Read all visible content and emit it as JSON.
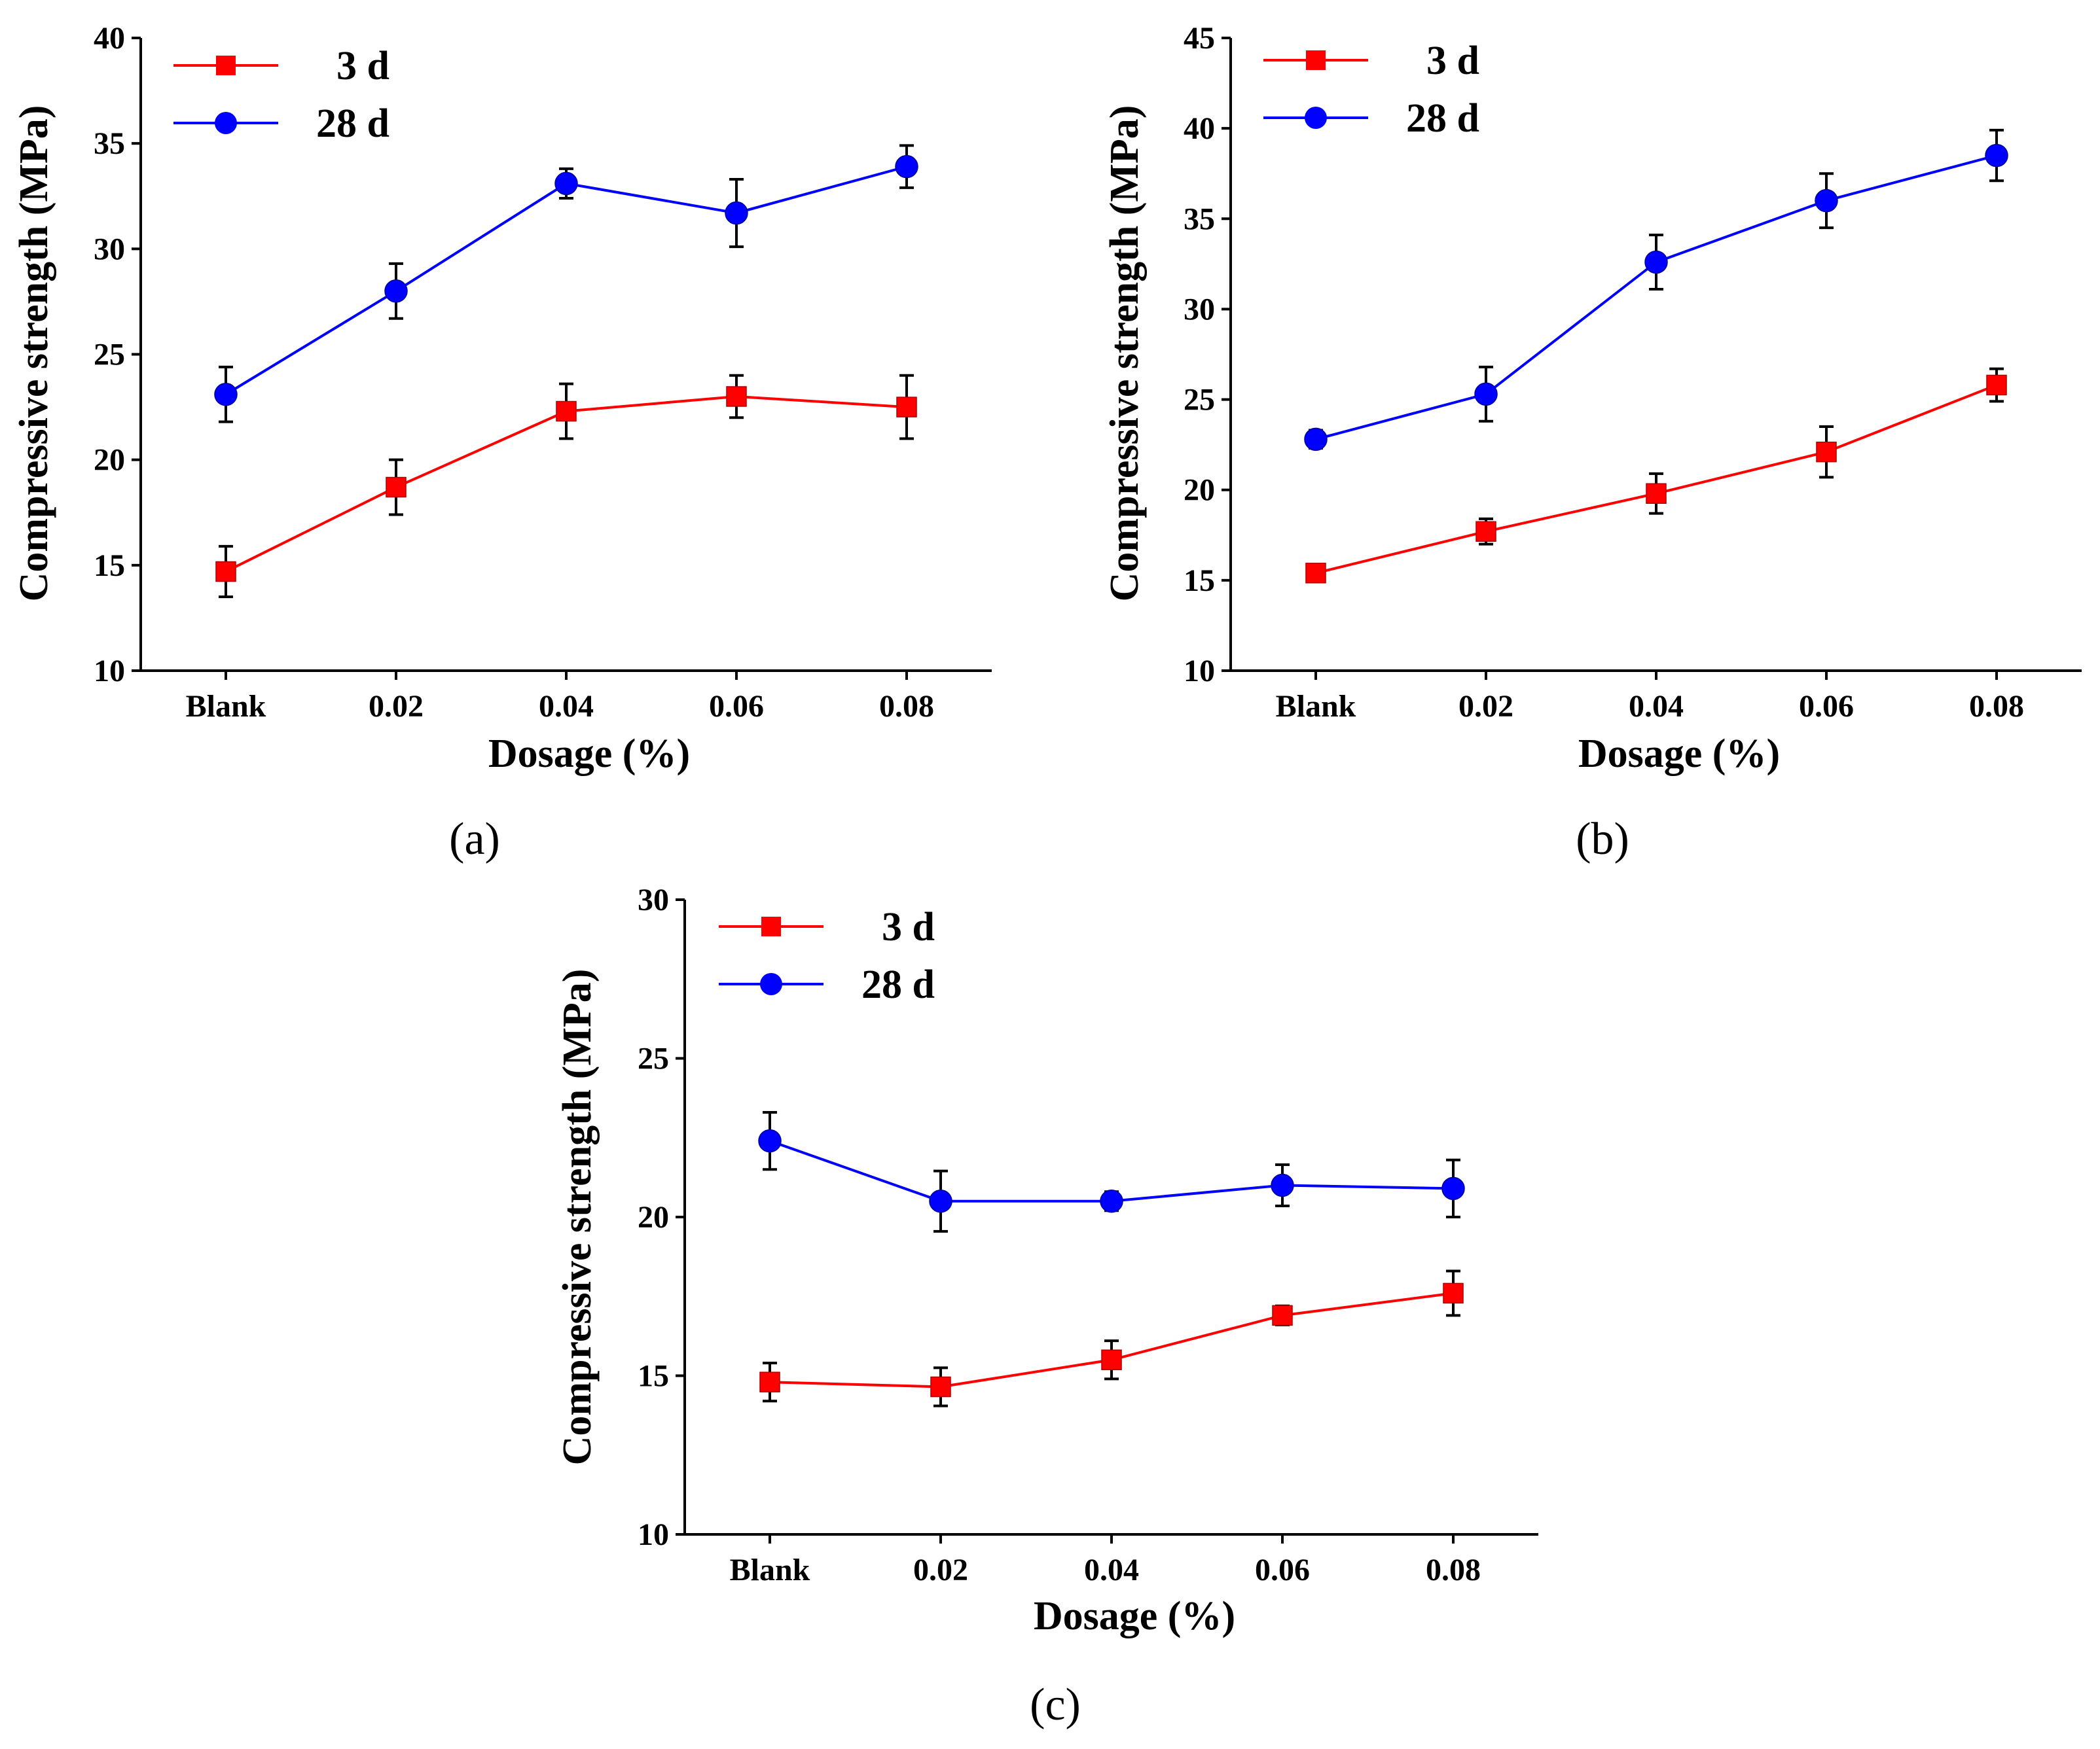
{
  "figure": {
    "panel_labels": [
      "(a)",
      "(b)",
      "(c)"
    ]
  },
  "colors": {
    "series_3d": "#ff0000",
    "series_28d": "#0000ff",
    "axis": "#000000"
  },
  "chart_data": [
    {
      "type": "line",
      "panel": "(a)",
      "title": "",
      "xlabel": "Dosage (%)",
      "ylabel": "Compressive strength (MPa)",
      "categories": [
        "Blank",
        "0.02",
        "0.04",
        "0.06",
        "0.08"
      ],
      "ylim": [
        10,
        40
      ],
      "yticks": [
        10,
        15,
        20,
        25,
        30,
        35,
        40
      ],
      "legend_position": "top-left",
      "series": [
        {
          "name": "3 d",
          "marker": "square",
          "color": "#ff0000",
          "values": [
            14.7,
            18.7,
            22.3,
            23.0,
            22.5
          ],
          "errors": [
            1.2,
            1.3,
            1.3,
            1.0,
            1.5
          ]
        },
        {
          "name": "28 d",
          "marker": "circle",
          "color": "#0000ff",
          "values": [
            23.1,
            28.0,
            33.1,
            31.7,
            33.9
          ],
          "errors": [
            1.3,
            1.3,
            0.7,
            1.6,
            1.0
          ]
        }
      ]
    },
    {
      "type": "line",
      "panel": "(b)",
      "title": "",
      "xlabel": "Dosage (%)",
      "ylabel": "Compressive strength (MPa)",
      "categories": [
        "Blank",
        "0.02",
        "0.04",
        "0.06",
        "0.08"
      ],
      "ylim": [
        10,
        45
      ],
      "yticks": [
        10,
        15,
        20,
        25,
        30,
        35,
        40,
        45
      ],
      "legend_position": "top-left",
      "series": [
        {
          "name": "3 d",
          "marker": "square",
          "color": "#ff0000",
          "values": [
            15.4,
            17.7,
            19.8,
            22.1,
            25.8
          ],
          "errors": [
            0.4,
            0.7,
            1.1,
            1.4,
            0.9
          ]
        },
        {
          "name": "28 d",
          "marker": "circle",
          "color": "#0000ff",
          "values": [
            22.8,
            25.3,
            32.6,
            36.0,
            38.5
          ],
          "errors": [
            0.5,
            1.5,
            1.5,
            1.5,
            1.4
          ]
        }
      ]
    },
    {
      "type": "line",
      "panel": "(c)",
      "title": "",
      "xlabel": "Dosage (%)",
      "ylabel": "Compressive strength (MPa)",
      "categories": [
        "Blank",
        "0.02",
        "0.04",
        "0.06",
        "0.08"
      ],
      "ylim": [
        10,
        30
      ],
      "yticks": [
        10,
        15,
        20,
        25,
        30
      ],
      "legend_position": "top-left",
      "series": [
        {
          "name": "3 d",
          "marker": "square",
          "color": "#ff0000",
          "values": [
            14.8,
            14.65,
            15.5,
            16.9,
            17.6
          ],
          "errors": [
            0.6,
            0.6,
            0.6,
            0.3,
            0.7
          ]
        },
        {
          "name": "28 d",
          "marker": "circle",
          "color": "#0000ff",
          "values": [
            22.4,
            20.5,
            20.5,
            21.0,
            20.9
          ],
          "errors": [
            0.9,
            0.95,
            0.3,
            0.65,
            0.9
          ]
        }
      ]
    }
  ]
}
